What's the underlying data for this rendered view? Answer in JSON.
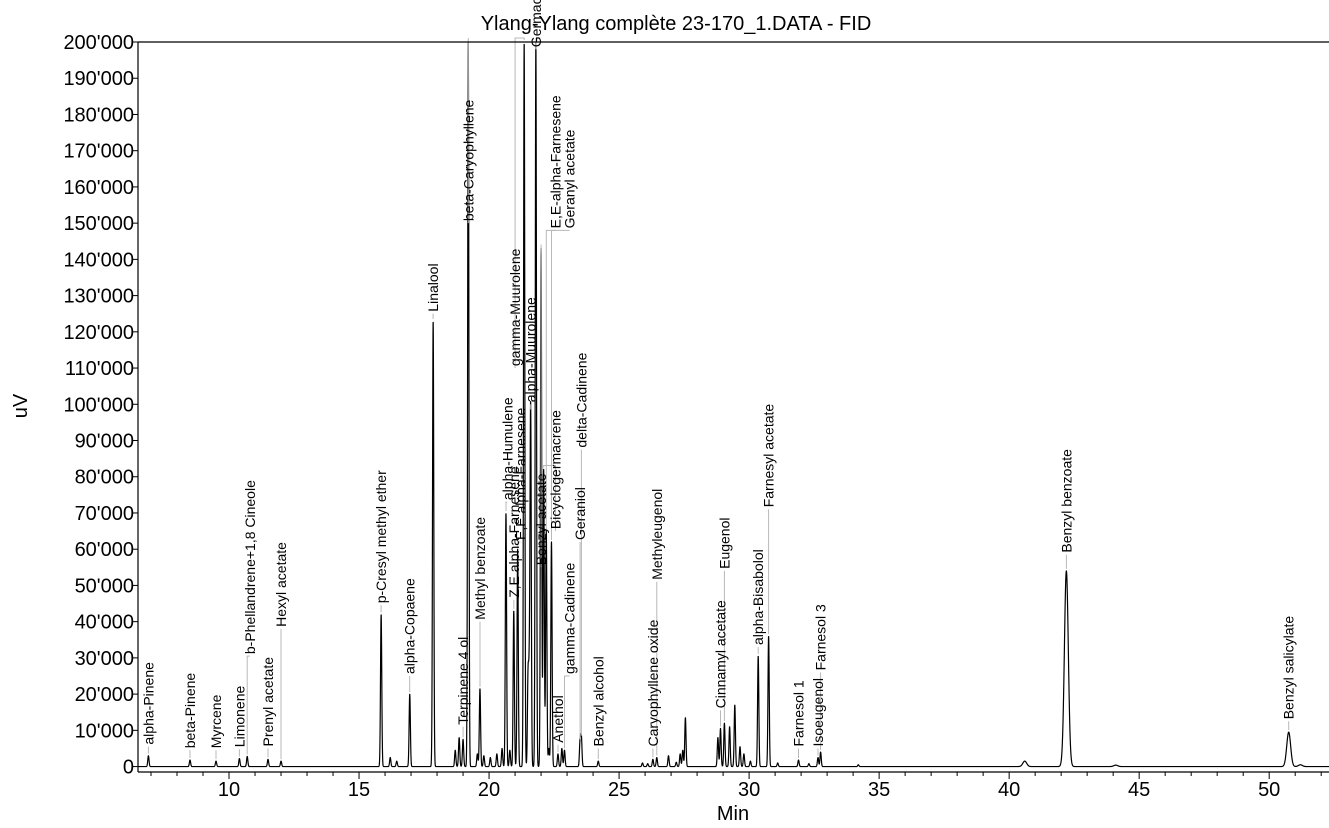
{
  "chart_data": {
    "type": "line",
    "title": "Ylang-Ylang complète 23-170_1.DATA - FID",
    "xlabel": "Min",
    "ylabel": "uV",
    "xlim": [
      6.5,
      52.3
    ],
    "ylim": [
      -1500,
      200000
    ],
    "x_ticks": [
      10,
      15,
      20,
      25,
      30,
      35,
      40,
      45,
      50
    ],
    "x_tick_labels": [
      "10",
      "15",
      "20",
      "25",
      "30",
      "35",
      "40",
      "45",
      "50"
    ],
    "y_ticks": [
      0,
      10000,
      20000,
      30000,
      40000,
      50000,
      60000,
      70000,
      80000,
      90000,
      100000,
      110000,
      120000,
      130000,
      140000,
      150000,
      160000,
      170000,
      180000,
      190000,
      200000
    ],
    "y_tick_labels": [
      "0",
      "10'000",
      "20'000",
      "30'000",
      "40'000",
      "50'000",
      "60'000",
      "70'000",
      "80'000",
      "90'000",
      "100'000",
      "110'000",
      "120'000",
      "130'000",
      "140'000",
      "150'000",
      "160'000",
      "170'000",
      "180'000",
      "190'000",
      "200'000"
    ],
    "grid": false,
    "legend": "none",
    "trace_color": "#000000",
    "label_leader_color": "#b8b8b8",
    "peaks": [
      {
        "name": "alpha-Pinene",
        "rt": 6.9,
        "height": 3000,
        "label_at": 6.9,
        "label_y": 5500
      },
      {
        "name": "beta-Pinene",
        "rt": 8.5,
        "height": 1800,
        "label_at": 8.5,
        "label_y": 4500
      },
      {
        "name": "Myrcene",
        "rt": 9.5,
        "height": 1500,
        "label_at": 9.5,
        "label_y": 4500
      },
      {
        "name": "Limonene",
        "rt": 10.4,
        "height": 2200,
        "label_at": 10.4,
        "label_y": 4800
      },
      {
        "name": "b-Phellandrene+1,8 Cineole",
        "rt": 10.7,
        "height": 2800,
        "label_at": 10.8,
        "label_y": 30500
      },
      {
        "name": "Prenyl acetate",
        "rt": 11.5,
        "height": 2000,
        "label_at": 11.5,
        "label_y": 5000
      },
      {
        "name": "Hexyl acetate",
        "rt": 12.0,
        "height": 1500,
        "label_at": 12.0,
        "label_y": 38000
      },
      {
        "name": "p-Cresyl methyl ether",
        "rt": 15.85,
        "height": 42000,
        "label_at": 15.85,
        "label_y": 44500
      },
      {
        "name": "alpha-Copaene",
        "rt": 16.95,
        "height": 20000,
        "label_at": 16.95,
        "label_y": 25000
      },
      {
        "name": "Linalool",
        "rt": 17.85,
        "height": 123000,
        "label_at": 17.85,
        "label_y": 125000
      },
      {
        "name": "Terpinene 4 ol",
        "rt": 19.0,
        "height": 7500,
        "label_at": 19.0,
        "label_y": 11000
      },
      {
        "name": "beta-Caryophyllene",
        "rt": 19.2,
        "height": 200000,
        "label_at": 19.2,
        "label_y": 150000
      },
      {
        "name": "Methyl benzoate",
        "rt": 19.65,
        "height": 21500,
        "label_at": 19.65,
        "label_y": 40000
      },
      {
        "name": "alpha-Humulene",
        "rt": 20.65,
        "height": 70000,
        "label_at": 20.7,
        "label_y": 73000
      },
      {
        "name": "Z,E alpha-Farnesene",
        "rt": 20.95,
        "height": 43000,
        "label_at": 20.95,
        "label_y": 46000
      },
      {
        "name": "E,E alpha-Farnesene",
        "rt": 21.1,
        "height": 60000,
        "label_at": 21.2,
        "label_y": 62000
      },
      {
        "name": "gamma-Muurolene",
        "rt": 21.35,
        "height": 200000,
        "label_at": 21.0,
        "label_y": 110000
      },
      {
        "name": "alpha-Muurolene",
        "rt": 21.6,
        "height": 98000,
        "label_at": 21.6,
        "label_y": 100000
      },
      {
        "name": "Germacrene D",
        "rt": 21.8,
        "height": 200000,
        "label_at": 21.8,
        "label_y": 198000
      },
      {
        "name": "Benzyl acetate",
        "rt": 22.0,
        "height": 143000,
        "label_at": 22.0,
        "label_y": 55000
      },
      {
        "name": "Bicyclogermacrene",
        "rt": 22.1,
        "height": 82000,
        "label_at": 22.55,
        "label_y": 65000
      },
      {
        "name": "E,E-alpha-Farnesene",
        "rt": 22.2,
        "height": 65000,
        "label_at": 22.55,
        "label_y": 148000
      },
      {
        "name": "Geranyl acetate",
        "rt": 22.4,
        "height": 62000,
        "label_at": 23.1,
        "label_y": 148000
      },
      {
        "name": "Anethol",
        "rt": 22.65,
        "height": 3500,
        "label_at": 22.65,
        "label_y": 6000
      },
      {
        "name": "gamma-Cadinene",
        "rt": 22.9,
        "height": 4500,
        "label_at": 23.1,
        "label_y": 25000
      },
      {
        "name": "Geraniol",
        "rt": 23.5,
        "height": 7000,
        "label_at": 23.5,
        "label_y": 62000
      },
      {
        "name": "delta-Cadinene",
        "rt": 23.55,
        "height": 8000,
        "label_at": 23.55,
        "label_y": 87500
      },
      {
        "name": "Benzyl alcohol",
        "rt": 24.2,
        "height": 1500,
        "label_at": 24.2,
        "label_y": 5000
      },
      {
        "name": "Caryophyllene oxide",
        "rt": 26.3,
        "height": 2000,
        "label_at": 26.3,
        "label_y": 5000
      },
      {
        "name": "Methyleugenol",
        "rt": 26.45,
        "height": 2500,
        "label_at": 26.45,
        "label_y": 51000
      },
      {
        "name": "Cinnamyl acetate",
        "rt": 28.9,
        "height": 10500,
        "label_at": 28.9,
        "label_y": 15500
      },
      {
        "name": "Eugenol",
        "rt": 29.05,
        "height": 12000,
        "label_at": 29.05,
        "label_y": 54000
      },
      {
        "name": "alpha-Bisabolol",
        "rt": 30.35,
        "height": 30500,
        "label_at": 30.35,
        "label_y": 33000
      },
      {
        "name": "Farnesyl acetate",
        "rt": 30.75,
        "height": 36000,
        "label_at": 30.75,
        "label_y": 71000
      },
      {
        "name": "Farnesol 1",
        "rt": 31.9,
        "height": 1800,
        "label_at": 31.9,
        "label_y": 5000
      },
      {
        "name": "Isoeugenol",
        "rt": 32.65,
        "height": 2500,
        "label_at": 32.65,
        "label_y": 5000
      },
      {
        "name": "Farnesol 3",
        "rt": 32.75,
        "height": 4000,
        "label_at": 32.75,
        "label_y": 26000
      },
      {
        "name": "Benzyl benzoate",
        "rt": 42.2,
        "height": 54000,
        "label_at": 42.2,
        "label_y": 58500
      },
      {
        "name": "Benzyl salicylate",
        "rt": 50.75,
        "height": 9500,
        "label_at": 50.75,
        "label_y": 12500
      }
    ],
    "minor_peaks": [
      {
        "rt": 16.2,
        "height": 2500
      },
      {
        "rt": 16.45,
        "height": 1500
      },
      {
        "rt": 18.7,
        "height": 4500
      },
      {
        "rt": 18.85,
        "height": 8000
      },
      {
        "rt": 19.55,
        "height": 3500
      },
      {
        "rt": 19.8,
        "height": 3000
      },
      {
        "rt": 20.05,
        "height": 2500
      },
      {
        "rt": 20.3,
        "height": 3500
      },
      {
        "rt": 20.5,
        "height": 5000
      },
      {
        "rt": 20.8,
        "height": 4500
      },
      {
        "rt": 21.5,
        "height": 25000
      },
      {
        "rt": 21.55,
        "height": 24000
      },
      {
        "rt": 22.3,
        "height": 5000
      },
      {
        "rt": 22.8,
        "height": 5000
      },
      {
        "rt": 25.9,
        "height": 1000
      },
      {
        "rt": 26.1,
        "height": 800
      },
      {
        "rt": 26.9,
        "height": 3000
      },
      {
        "rt": 27.2,
        "height": 1200
      },
      {
        "rt": 27.35,
        "height": 3500
      },
      {
        "rt": 27.45,
        "height": 4500
      },
      {
        "rt": 27.55,
        "height": 13500
      },
      {
        "rt": 28.8,
        "height": 8000
      },
      {
        "rt": 29.25,
        "height": 11000
      },
      {
        "rt": 29.45,
        "height": 17000
      },
      {
        "rt": 29.65,
        "height": 5500
      },
      {
        "rt": 29.8,
        "height": 3500
      },
      {
        "rt": 30.05,
        "height": 1500
      },
      {
        "rt": 31.1,
        "height": 1000
      },
      {
        "rt": 32.3,
        "height": 800
      },
      {
        "rt": 34.2,
        "height": 500
      },
      {
        "rt": 40.6,
        "height": 1500
      },
      {
        "rt": 44.1,
        "height": 400
      },
      {
        "rt": 51.2,
        "height": 500
      }
    ]
  }
}
